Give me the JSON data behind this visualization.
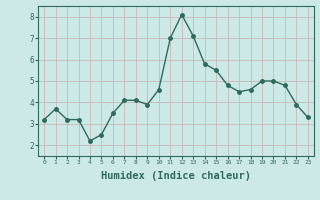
{
  "x": [
    0,
    1,
    2,
    3,
    4,
    5,
    6,
    7,
    8,
    9,
    10,
    11,
    12,
    13,
    14,
    15,
    16,
    17,
    18,
    19,
    20,
    21,
    22,
    23
  ],
  "y": [
    3.2,
    3.7,
    3.2,
    3.2,
    2.2,
    2.5,
    3.5,
    4.1,
    4.1,
    3.9,
    4.6,
    7.0,
    8.1,
    7.1,
    5.8,
    5.5,
    4.8,
    4.5,
    4.6,
    5.0,
    5.0,
    4.8,
    3.9,
    3.3
  ],
  "line_color": "#2d6b5e",
  "marker": "o",
  "markersize": 2.5,
  "linewidth": 1.0,
  "xlabel": "Humidex (Indice chaleur)",
  "xlabel_fontsize": 7.5,
  "bg_color": "#cce9e7",
  "grid_color": "#c8b8b8",
  "tick_color": "#2d6b5e",
  "xlim": [
    -0.5,
    23.5
  ],
  "ylim": [
    1.5,
    8.5
  ],
  "yticks": [
    2,
    3,
    4,
    5,
    6,
    7,
    8
  ],
  "xticks": [
    0,
    1,
    2,
    3,
    4,
    5,
    6,
    7,
    8,
    9,
    10,
    11,
    12,
    13,
    14,
    15,
    16,
    17,
    18,
    19,
    20,
    21,
    22,
    23
  ]
}
